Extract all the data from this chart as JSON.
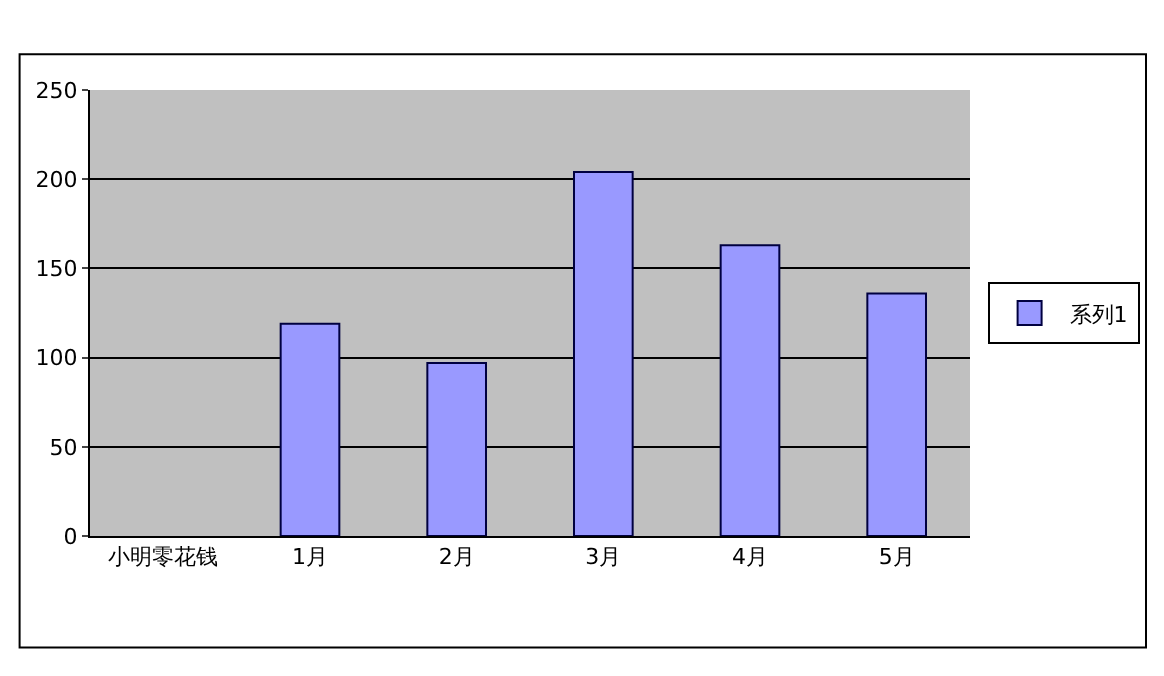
{
  "chart_data": {
    "type": "bar",
    "categories": [
      "小明零花钱",
      "1月",
      "2月",
      "3月",
      "4月",
      "5月"
    ],
    "series": [
      {
        "name": "系列1",
        "color": "#9999ff",
        "values": [
          null,
          119,
          97,
          204,
          163,
          136
        ]
      }
    ],
    "ylim": [
      0,
      250
    ],
    "yticks": [
      0,
      50,
      100,
      150,
      200,
      250
    ],
    "grid": "y",
    "legend": "right"
  }
}
